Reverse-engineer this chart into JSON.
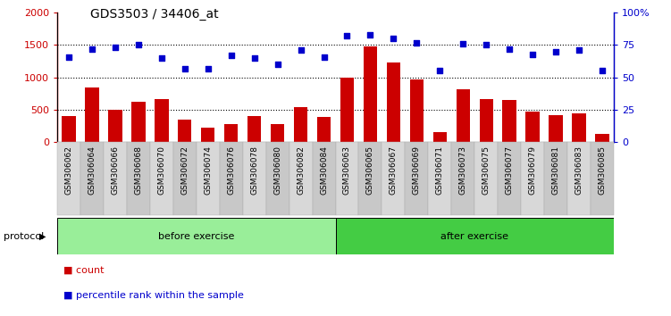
{
  "title": "GDS3503 / 34406_at",
  "categories": [
    "GSM306062",
    "GSM306064",
    "GSM306066",
    "GSM306068",
    "GSM306070",
    "GSM306072",
    "GSM306074",
    "GSM306076",
    "GSM306078",
    "GSM306080",
    "GSM306082",
    "GSM306084",
    "GSM306063",
    "GSM306065",
    "GSM306067",
    "GSM306069",
    "GSM306071",
    "GSM306073",
    "GSM306075",
    "GSM306077",
    "GSM306079",
    "GSM306081",
    "GSM306083",
    "GSM306085"
  ],
  "counts": [
    400,
    840,
    500,
    630,
    670,
    350,
    230,
    280,
    400,
    280,
    540,
    390,
    1000,
    1480,
    1230,
    970,
    160,
    820,
    660,
    650,
    470,
    420,
    440,
    135
  ],
  "percentiles": [
    66,
    72,
    73,
    75,
    65,
    57,
    57,
    67,
    65,
    60,
    71,
    66,
    82,
    83,
    80,
    77,
    55,
    76,
    75,
    72,
    68,
    70,
    71,
    55
  ],
  "bar_color": "#cc0000",
  "dot_color": "#0000cc",
  "before_exercise_count": 12,
  "after_exercise_count": 12,
  "before_color": "#99ee99",
  "after_color": "#44cc44",
  "ylim_left": [
    0,
    2000
  ],
  "ylim_right": [
    0,
    100
  ],
  "yticks_left": [
    0,
    500,
    1000,
    1500,
    2000
  ],
  "ytick_labels_left": [
    "0",
    "500",
    "1000",
    "1500",
    "2000"
  ],
  "ytick_labels_right": [
    "0",
    "25",
    "50",
    "75",
    "100%"
  ],
  "grid_values": [
    500,
    1000,
    1500
  ],
  "bar_width": 0.6,
  "protocol_label": "protocol",
  "before_label": "before exercise",
  "after_label": "after exercise",
  "legend_count": "count",
  "legend_percentile": "percentile rank within the sample",
  "label_box_color": "#cccccc",
  "label_box_edge": "#999999"
}
